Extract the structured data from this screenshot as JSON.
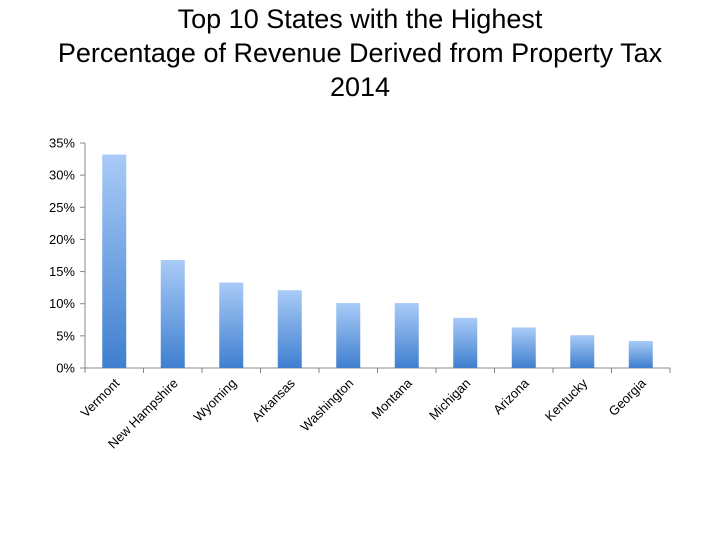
{
  "chart_data": {
    "type": "bar",
    "title_lines": [
      "Top 10 States with the Highest",
      "Percentage of Revenue Derived from Property Tax",
      "2014"
    ],
    "categories": [
      "Vermont",
      "New Hampshire",
      "Wyoming",
      "Arkansas",
      "Washington",
      "Montana",
      "Michigan",
      "Arizona",
      "Kentucky",
      "Georgia"
    ],
    "values": [
      33.2,
      16.8,
      13.3,
      12.1,
      10.1,
      10.1,
      7.8,
      6.3,
      5.1,
      4.2
    ],
    "ylim": [
      0,
      35
    ],
    "yticks": [
      "0%",
      "5%",
      "10%",
      "15%",
      "20%",
      "25%",
      "30%",
      "35%"
    ],
    "ytick_values": [
      0,
      5,
      10,
      15,
      20,
      25,
      30,
      35
    ],
    "grid": false,
    "colors": {
      "bar_top": "#a9cbf7",
      "bar_bottom": "#3f7fcf",
      "axis": "#888888"
    }
  }
}
